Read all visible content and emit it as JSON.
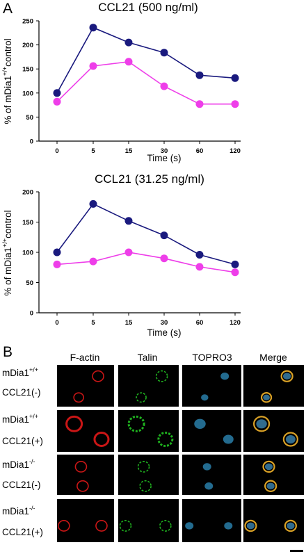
{
  "panel_a_label": "A",
  "panel_b_label": "B",
  "chart_data": [
    {
      "type": "line",
      "title": "CCL21 (500 ng/ml)",
      "xlabel": "Time (s)",
      "ylabel_prefix": "% of mDia1",
      "ylabel_sup": "+/+",
      "ylabel_suffix": "control",
      "categories": [
        "0",
        "5",
        "15",
        "30",
        "60",
        "120"
      ],
      "ylim": [
        0,
        250
      ],
      "yticks": [
        0,
        50,
        100,
        150,
        200,
        250
      ],
      "series": [
        {
          "color": "#1a1a7e",
          "values": [
            100,
            236,
            205,
            184,
            137,
            131
          ]
        },
        {
          "color": "#ee3ee9",
          "values": [
            82,
            156,
            165,
            114,
            77,
            77
          ]
        }
      ]
    },
    {
      "type": "line",
      "title": "CCL21 (31.25 ng/ml)",
      "xlabel": "Time (s)",
      "ylabel_prefix": "% of mDia1",
      "ylabel_sup": "+/+",
      "ylabel_suffix": "control",
      "categories": [
        "0",
        "5",
        "15",
        "30",
        "60",
        "120"
      ],
      "ylim": [
        0,
        200
      ],
      "yticks": [
        0,
        50,
        100,
        150,
        200
      ],
      "series": [
        {
          "color": "#1a1a7e",
          "values": [
            100,
            180,
            152,
            128,
            96,
            80
          ]
        },
        {
          "color": "#ee3ee9",
          "values": [
            80,
            85,
            100,
            90,
            76,
            67
          ]
        }
      ]
    }
  ],
  "micrograph": {
    "columns": [
      "F-actin",
      "Talin",
      "TOPRO3",
      "Merge"
    ],
    "rows": [
      {
        "genotype": "mDia1",
        "sup": "+/+",
        "treatment": "CCL21(-)"
      },
      {
        "genotype": "mDia1",
        "sup": "+/+",
        "treatment": "CCL21(+)"
      },
      {
        "genotype": "mDia1",
        "sup": "-/-",
        "treatment": "CCL21(-)"
      },
      {
        "genotype": "mDia1",
        "sup": "-/-",
        "treatment": "CCL21(+)"
      }
    ],
    "channel_colors": [
      "#e01818",
      "#22c422",
      "#2f8fbf",
      "#d9a126"
    ]
  }
}
